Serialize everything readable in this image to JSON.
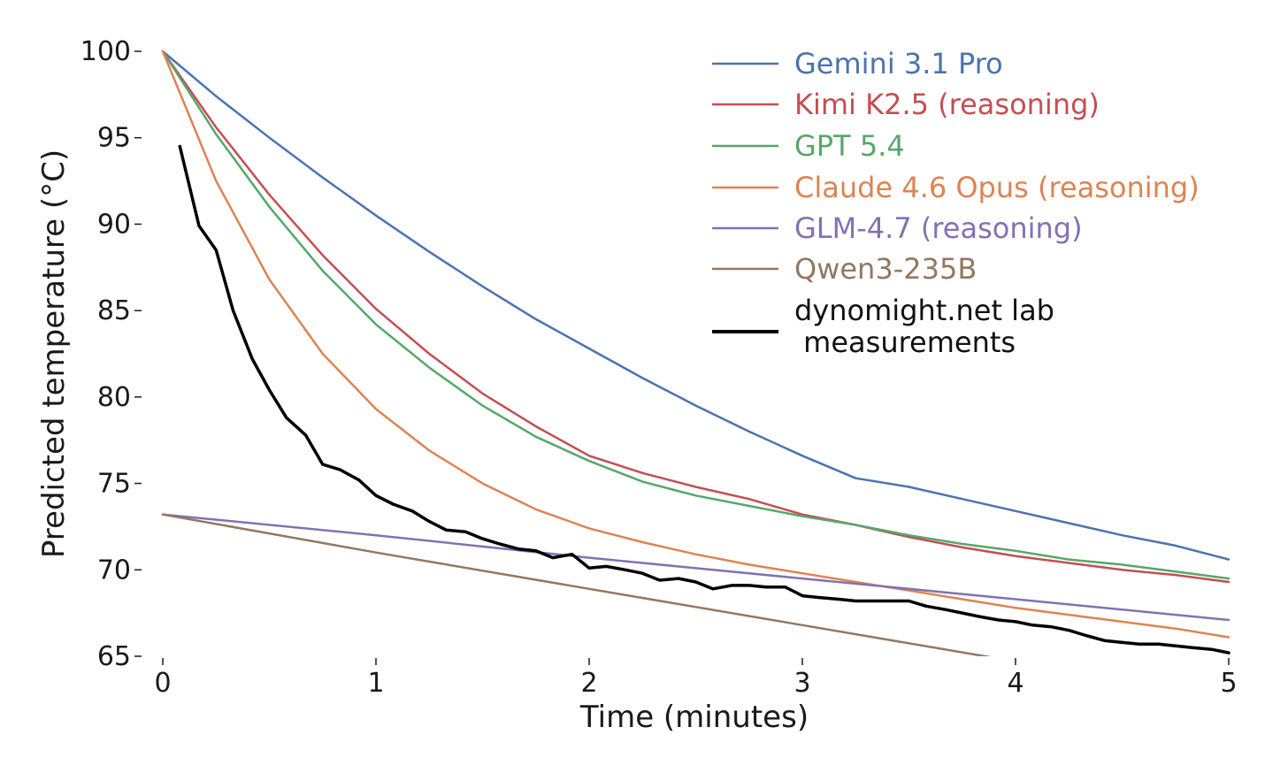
{
  "chart_data": {
    "type": "line",
    "title": "",
    "xlabel": "Time (minutes)",
    "ylabel": "Predicted temperature (°C)",
    "xlim": [
      0,
      5
    ],
    "ylim": [
      65,
      100
    ],
    "xticks": [
      0,
      1,
      2,
      3,
      4,
      5
    ],
    "yticks": [
      65,
      70,
      75,
      80,
      85,
      90,
      95,
      100
    ],
    "grid": false,
    "legend_position": "top-right",
    "series": [
      {
        "name": "Gemini 3.1 Pro",
        "color": "#4c72b0",
        "x": [
          0,
          0.25,
          0.5,
          0.75,
          1,
          1.25,
          1.5,
          1.75,
          2,
          2.25,
          2.5,
          2.75,
          3,
          3.25,
          3.5,
          3.75,
          4,
          4.25,
          4.5,
          4.75,
          5
        ],
        "y": [
          100,
          97.4,
          95.0,
          92.7,
          90.5,
          88.4,
          86.4,
          84.5,
          82.8,
          81.1,
          79.5,
          78.0,
          76.6,
          75.3,
          74.8,
          74.1,
          73.4,
          72.7,
          72.0,
          71.4,
          70.6
        ]
      },
      {
        "name": "Kimi K2.5 (reasoning)",
        "color": "#c44e52",
        "x": [
          0,
          0.25,
          0.5,
          0.75,
          1,
          1.25,
          1.5,
          1.75,
          2,
          2.25,
          2.5,
          2.75,
          3,
          3.25,
          3.5,
          3.75,
          4,
          4.25,
          4.5,
          4.75,
          5
        ],
        "y": [
          100,
          95.6,
          91.7,
          88.2,
          85.1,
          82.5,
          80.2,
          78.3,
          76.6,
          75.6,
          74.8,
          74.1,
          73.2,
          72.6,
          71.9,
          71.3,
          70.8,
          70.4,
          70.0,
          69.7,
          69.3
        ]
      },
      {
        "name": "GPT 5.4",
        "color": "#55a868",
        "x": [
          0,
          0.25,
          0.5,
          0.75,
          1,
          1.25,
          1.5,
          1.75,
          2,
          2.25,
          2.5,
          2.75,
          3,
          3.25,
          3.5,
          3.75,
          4,
          4.25,
          4.5,
          4.75,
          5
        ],
        "y": [
          100,
          95.2,
          91.0,
          87.3,
          84.2,
          81.7,
          79.5,
          77.7,
          76.3,
          75.1,
          74.3,
          73.7,
          73.1,
          72.6,
          72.0,
          71.5,
          71.1,
          70.6,
          70.3,
          69.9,
          69.5
        ]
      },
      {
        "name": "Claude 4.6 Opus (reasoning)",
        "color": "#dd8452",
        "x": [
          0,
          0.25,
          0.5,
          0.75,
          1,
          1.25,
          1.5,
          1.75,
          2,
          2.25,
          2.5,
          2.75,
          3,
          3.25,
          3.5,
          3.75,
          4,
          4.25,
          4.5,
          4.75,
          5
        ],
        "y": [
          100,
          92.5,
          86.8,
          82.5,
          79.3,
          76.9,
          75.0,
          73.5,
          72.4,
          71.6,
          70.9,
          70.3,
          69.8,
          69.3,
          68.8,
          68.3,
          67.8,
          67.4,
          67.0,
          66.6,
          66.1
        ]
      },
      {
        "name": "GLM-4.7 (reasoning)",
        "color": "#8172b3",
        "x": [
          0,
          1,
          2,
          3,
          4,
          5
        ],
        "y": [
          73.2,
          72.0,
          70.7,
          69.5,
          68.3,
          67.1
        ]
      },
      {
        "name": "Qwen3-235B",
        "color": "#937860",
        "x": [
          0,
          1,
          2,
          3,
          4,
          5
        ],
        "y": [
          73.2,
          71.0,
          68.9,
          66.8,
          64.7,
          62.6
        ]
      },
      {
        "name": "dynomight.net lab\n measurements",
        "color": "#000000",
        "x": [
          0.08,
          0.17,
          0.25,
          0.33,
          0.42,
          0.5,
          0.58,
          0.67,
          0.75,
          0.83,
          0.92,
          1.0,
          1.08,
          1.17,
          1.25,
          1.33,
          1.42,
          1.5,
          1.58,
          1.67,
          1.75,
          1.83,
          1.92,
          2.0,
          2.08,
          2.17,
          2.25,
          2.33,
          2.42,
          2.5,
          2.58,
          2.67,
          2.75,
          2.83,
          2.92,
          3.0,
          3.08,
          3.17,
          3.25,
          3.33,
          3.42,
          3.5,
          3.58,
          3.67,
          3.75,
          3.83,
          3.92,
          4.0,
          4.08,
          4.17,
          4.25,
          4.33,
          4.42,
          4.5,
          4.58,
          4.67,
          4.75,
          4.83,
          4.92,
          5.0
        ],
        "y": [
          94.5,
          89.9,
          88.5,
          85.0,
          82.2,
          80.4,
          78.8,
          77.8,
          76.1,
          75.8,
          75.2,
          74.3,
          73.8,
          73.4,
          72.8,
          72.3,
          72.2,
          71.8,
          71.5,
          71.2,
          71.1,
          70.7,
          70.9,
          70.1,
          70.2,
          70.0,
          69.8,
          69.4,
          69.5,
          69.3,
          68.9,
          69.1,
          69.1,
          69.0,
          69.0,
          68.5,
          68.4,
          68.3,
          68.2,
          68.2,
          68.2,
          68.2,
          67.9,
          67.7,
          67.5,
          67.3,
          67.1,
          67.0,
          66.8,
          66.7,
          66.5,
          66.2,
          65.9,
          65.8,
          65.7,
          65.7,
          65.6,
          65.5,
          65.4,
          65.2
        ]
      }
    ]
  }
}
